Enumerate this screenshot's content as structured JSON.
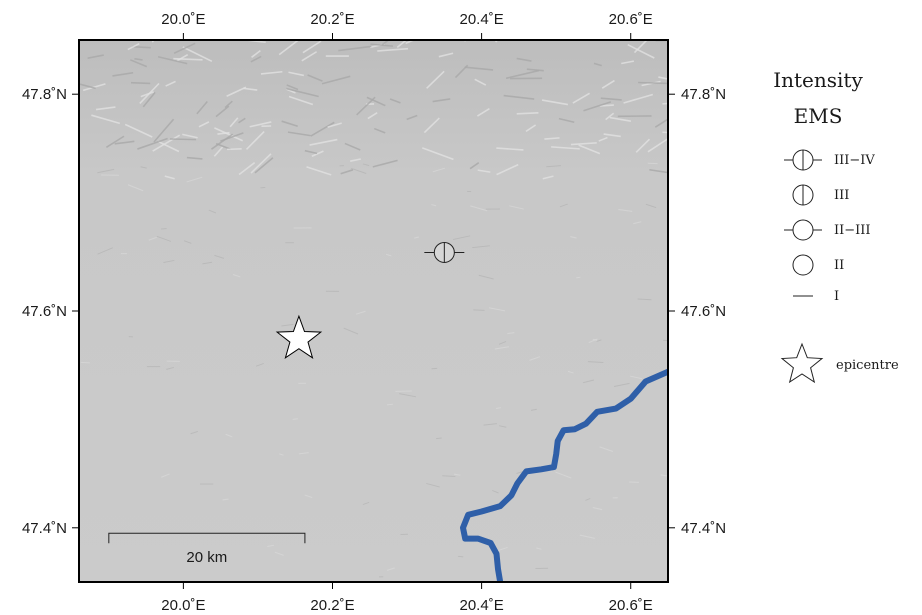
{
  "map": {
    "extent": {
      "lon_min": 19.86,
      "lon_max": 20.65,
      "lat_min": 47.35,
      "lat_max": 47.85
    },
    "lon_ticks": [
      {
        "lon": 20.0,
        "label": "20.0˚E"
      },
      {
        "lon": 20.2,
        "label": "20.2˚E"
      },
      {
        "lon": 20.4,
        "label": "20.4˚E"
      },
      {
        "lon": 20.6,
        "label": "20.6˚E"
      }
    ],
    "lat_ticks": [
      {
        "lat": 47.4,
        "label": "47.4˚N"
      },
      {
        "lat": 47.6,
        "label": "47.6˚N"
      },
      {
        "lat": 47.8,
        "label": "47.8˚N"
      }
    ],
    "colors": {
      "relief": "#c9c9c9",
      "relief_dark": "#a9a9a9",
      "river": "#2f5fa8",
      "frame": "#000000"
    },
    "epicentre": {
      "lon": 20.155,
      "lat": 47.574
    },
    "observations": [
      {
        "lon": 20.35,
        "lat": 47.654,
        "intensity": "III-IV"
      }
    ],
    "river": {
      "name_shown": false,
      "points": [
        [
          20.65,
          47.544
        ],
        [
          20.62,
          47.535
        ],
        [
          20.6,
          47.519
        ],
        [
          20.58,
          47.51
        ],
        [
          20.555,
          47.507
        ],
        [
          20.54,
          47.496
        ],
        [
          20.525,
          47.491
        ],
        [
          20.51,
          47.49
        ],
        [
          20.502,
          47.48
        ],
        [
          20.5,
          47.468
        ],
        [
          20.497,
          47.456
        ],
        [
          20.48,
          47.454
        ],
        [
          20.46,
          47.452
        ],
        [
          20.448,
          47.441
        ],
        [
          20.44,
          47.43
        ],
        [
          20.425,
          47.42
        ],
        [
          20.4,
          47.415
        ],
        [
          20.382,
          47.412
        ],
        [
          20.375,
          47.4
        ],
        [
          20.378,
          47.39
        ],
        [
          20.395,
          47.39
        ],
        [
          20.412,
          47.386
        ],
        [
          20.42,
          47.376
        ],
        [
          20.422,
          47.362
        ],
        [
          20.425,
          47.35
        ]
      ]
    },
    "scale_bar": {
      "label": "20 km",
      "lon_start": 19.9,
      "lon_end": 20.163,
      "lat": 47.395
    }
  },
  "legend": {
    "title_line1": "Intensity",
    "title_line2": "EMS",
    "items": [
      {
        "symbol": "III-IV",
        "label": "III−IV"
      },
      {
        "symbol": "III",
        "label": "III"
      },
      {
        "symbol": "II-III",
        "label": "II−III"
      },
      {
        "symbol": "II",
        "label": "II"
      },
      {
        "symbol": "I",
        "label": "I"
      }
    ],
    "epicentre_label": "epicentre"
  }
}
